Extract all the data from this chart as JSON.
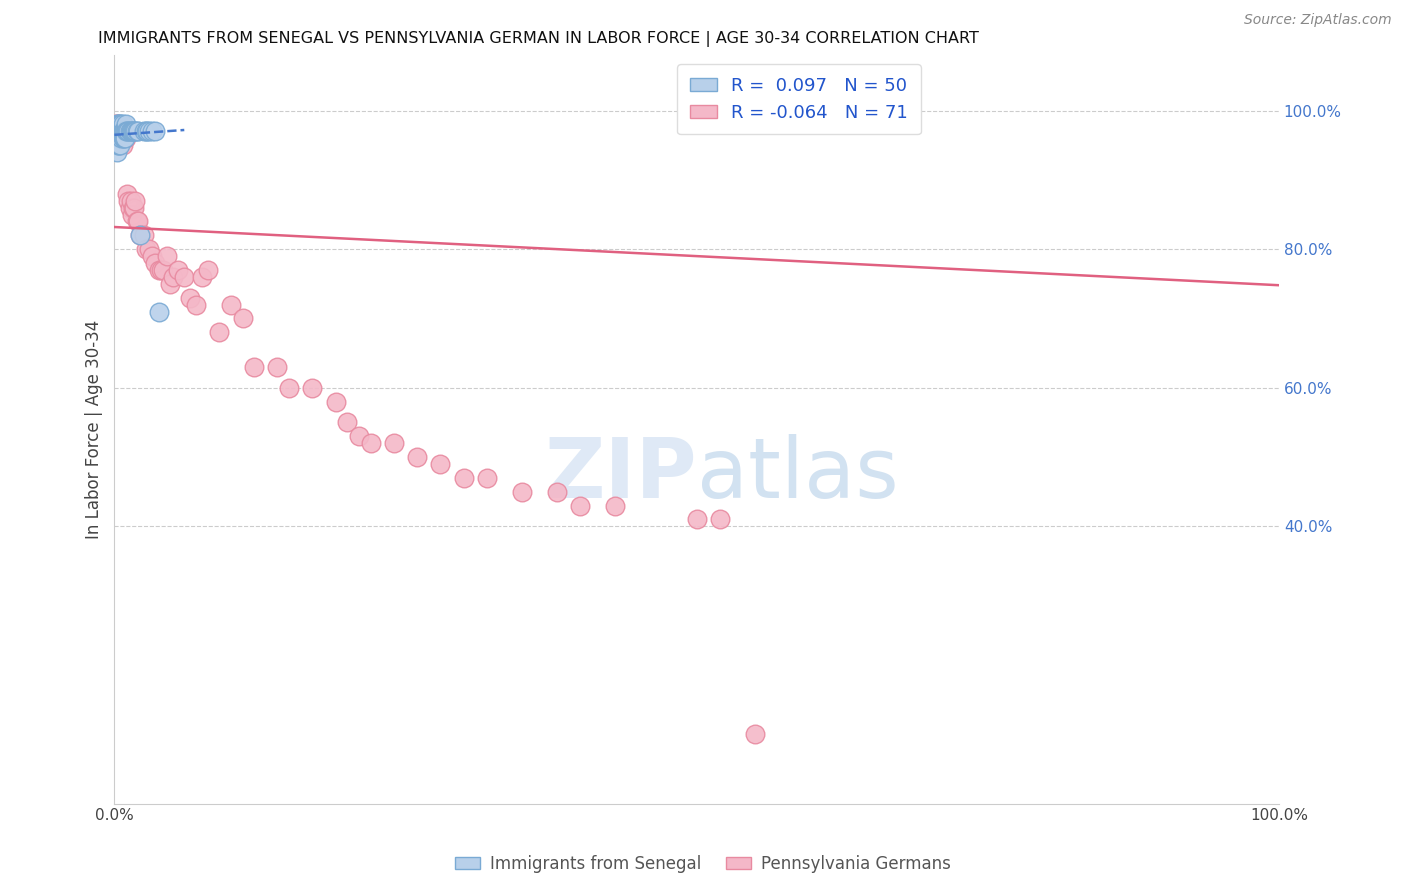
{
  "title": "IMMIGRANTS FROM SENEGAL VS PENNSYLVANIA GERMAN IN LABOR FORCE | AGE 30-34 CORRELATION CHART",
  "source": "Source: ZipAtlas.com",
  "ylabel": "In Labor Force | Age 30-34",
  "blue_R": 0.097,
  "blue_N": 50,
  "pink_R": -0.064,
  "pink_N": 71,
  "blue_color": "#b8d0ea",
  "blue_edge": "#7aaad4",
  "pink_color": "#f4b8c8",
  "pink_edge": "#e88aa0",
  "blue_line_color": "#4477cc",
  "pink_line_color": "#e06080",
  "legend_blue_label": "Immigrants from Senegal",
  "legend_pink_label": "Pennsylvania Germans",
  "blue_scatter_x": [
    0.001,
    0.001,
    0.002,
    0.002,
    0.002,
    0.002,
    0.003,
    0.003,
    0.003,
    0.003,
    0.003,
    0.004,
    0.004,
    0.004,
    0.004,
    0.005,
    0.005,
    0.005,
    0.005,
    0.005,
    0.006,
    0.006,
    0.006,
    0.007,
    0.007,
    0.007,
    0.008,
    0.008,
    0.009,
    0.009,
    0.01,
    0.01,
    0.011,
    0.012,
    0.013,
    0.014,
    0.015,
    0.016,
    0.017,
    0.018,
    0.019,
    0.02,
    0.022,
    0.025,
    0.027,
    0.028,
    0.03,
    0.032,
    0.035,
    0.038
  ],
  "blue_scatter_y": [
    0.97,
    0.95,
    0.98,
    0.97,
    0.96,
    0.94,
    0.98,
    0.97,
    0.97,
    0.96,
    0.95,
    0.98,
    0.97,
    0.96,
    0.95,
    0.98,
    0.97,
    0.97,
    0.96,
    0.95,
    0.98,
    0.97,
    0.96,
    0.98,
    0.97,
    0.96,
    0.97,
    0.96,
    0.97,
    0.96,
    0.98,
    0.97,
    0.97,
    0.97,
    0.97,
    0.97,
    0.97,
    0.97,
    0.97,
    0.97,
    0.97,
    0.97,
    0.82,
    0.97,
    0.97,
    0.97,
    0.97,
    0.97,
    0.97,
    0.71
  ],
  "pink_scatter_x": [
    0.001,
    0.002,
    0.002,
    0.003,
    0.003,
    0.003,
    0.004,
    0.004,
    0.005,
    0.005,
    0.005,
    0.006,
    0.006,
    0.007,
    0.007,
    0.008,
    0.009,
    0.009,
    0.01,
    0.01,
    0.011,
    0.012,
    0.013,
    0.014,
    0.015,
    0.016,
    0.017,
    0.018,
    0.019,
    0.02,
    0.022,
    0.025,
    0.027,
    0.03,
    0.032,
    0.035,
    0.038,
    0.04,
    0.042,
    0.045,
    0.048,
    0.05,
    0.055,
    0.06,
    0.065,
    0.07,
    0.075,
    0.08,
    0.09,
    0.1,
    0.11,
    0.12,
    0.14,
    0.15,
    0.17,
    0.19,
    0.2,
    0.21,
    0.22,
    0.24,
    0.26,
    0.28,
    0.3,
    0.32,
    0.35,
    0.38,
    0.4,
    0.43,
    0.5,
    0.52,
    0.55
  ],
  "pink_scatter_y": [
    0.98,
    0.98,
    0.97,
    0.97,
    0.96,
    0.95,
    0.97,
    0.96,
    0.97,
    0.97,
    0.96,
    0.97,
    0.96,
    0.97,
    0.95,
    0.96,
    0.97,
    0.96,
    0.97,
    0.96,
    0.88,
    0.87,
    0.86,
    0.87,
    0.85,
    0.86,
    0.86,
    0.87,
    0.84,
    0.84,
    0.82,
    0.82,
    0.8,
    0.8,
    0.79,
    0.78,
    0.77,
    0.77,
    0.77,
    0.79,
    0.75,
    0.76,
    0.77,
    0.76,
    0.73,
    0.72,
    0.76,
    0.77,
    0.68,
    0.72,
    0.7,
    0.63,
    0.63,
    0.6,
    0.6,
    0.58,
    0.55,
    0.53,
    0.52,
    0.52,
    0.5,
    0.49,
    0.47,
    0.47,
    0.45,
    0.45,
    0.43,
    0.43,
    0.41,
    0.41,
    0.1
  ]
}
